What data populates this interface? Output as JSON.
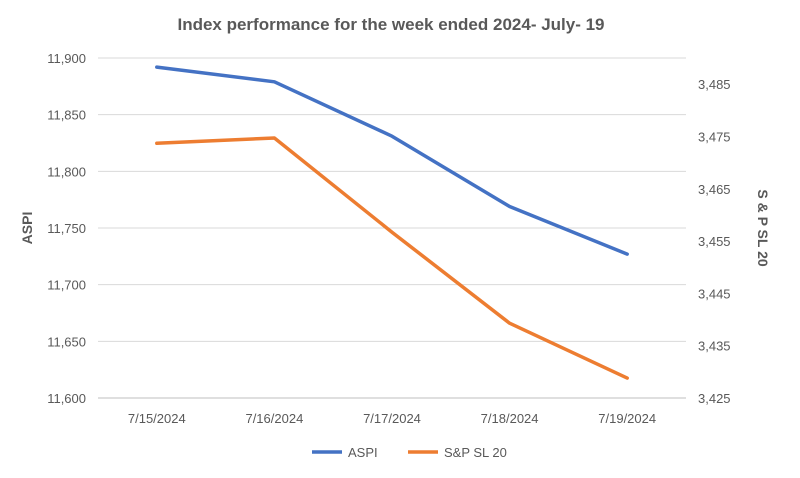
{
  "chart_data": {
    "type": "line",
    "title": "Index performance for the week ended 2024- July- 19",
    "categories": [
      "7/15/2024",
      "7/16/2024",
      "7/17/2024",
      "7/18/2024",
      "7/19/2024"
    ],
    "y_left": {
      "label": "ASPI",
      "range": [
        11600,
        11900
      ],
      "ticks": [
        "11,600",
        "11,650",
        "11,700",
        "11,750",
        "11,800",
        "11,850",
        "11,900"
      ]
    },
    "y_right": {
      "label": "S & P SL 20",
      "range": [
        3425,
        3490
      ],
      "ticks": [
        "3,425",
        "3,435",
        "3,445",
        "3,455",
        "3,465",
        "3,475",
        "3,485"
      ]
    },
    "series": [
      {
        "name": "ASPI",
        "axis": "left",
        "color": "#4472C4",
        "values": [
          11892,
          11879,
          11831,
          11769,
          11727
        ]
      },
      {
        "name": "S&P SL 20",
        "axis": "right",
        "color": "#ED7D31",
        "values": [
          3473.7,
          3474.7,
          3456.7,
          3439.3,
          3428.8
        ]
      }
    ],
    "grid": true,
    "legend": "bottom"
  }
}
